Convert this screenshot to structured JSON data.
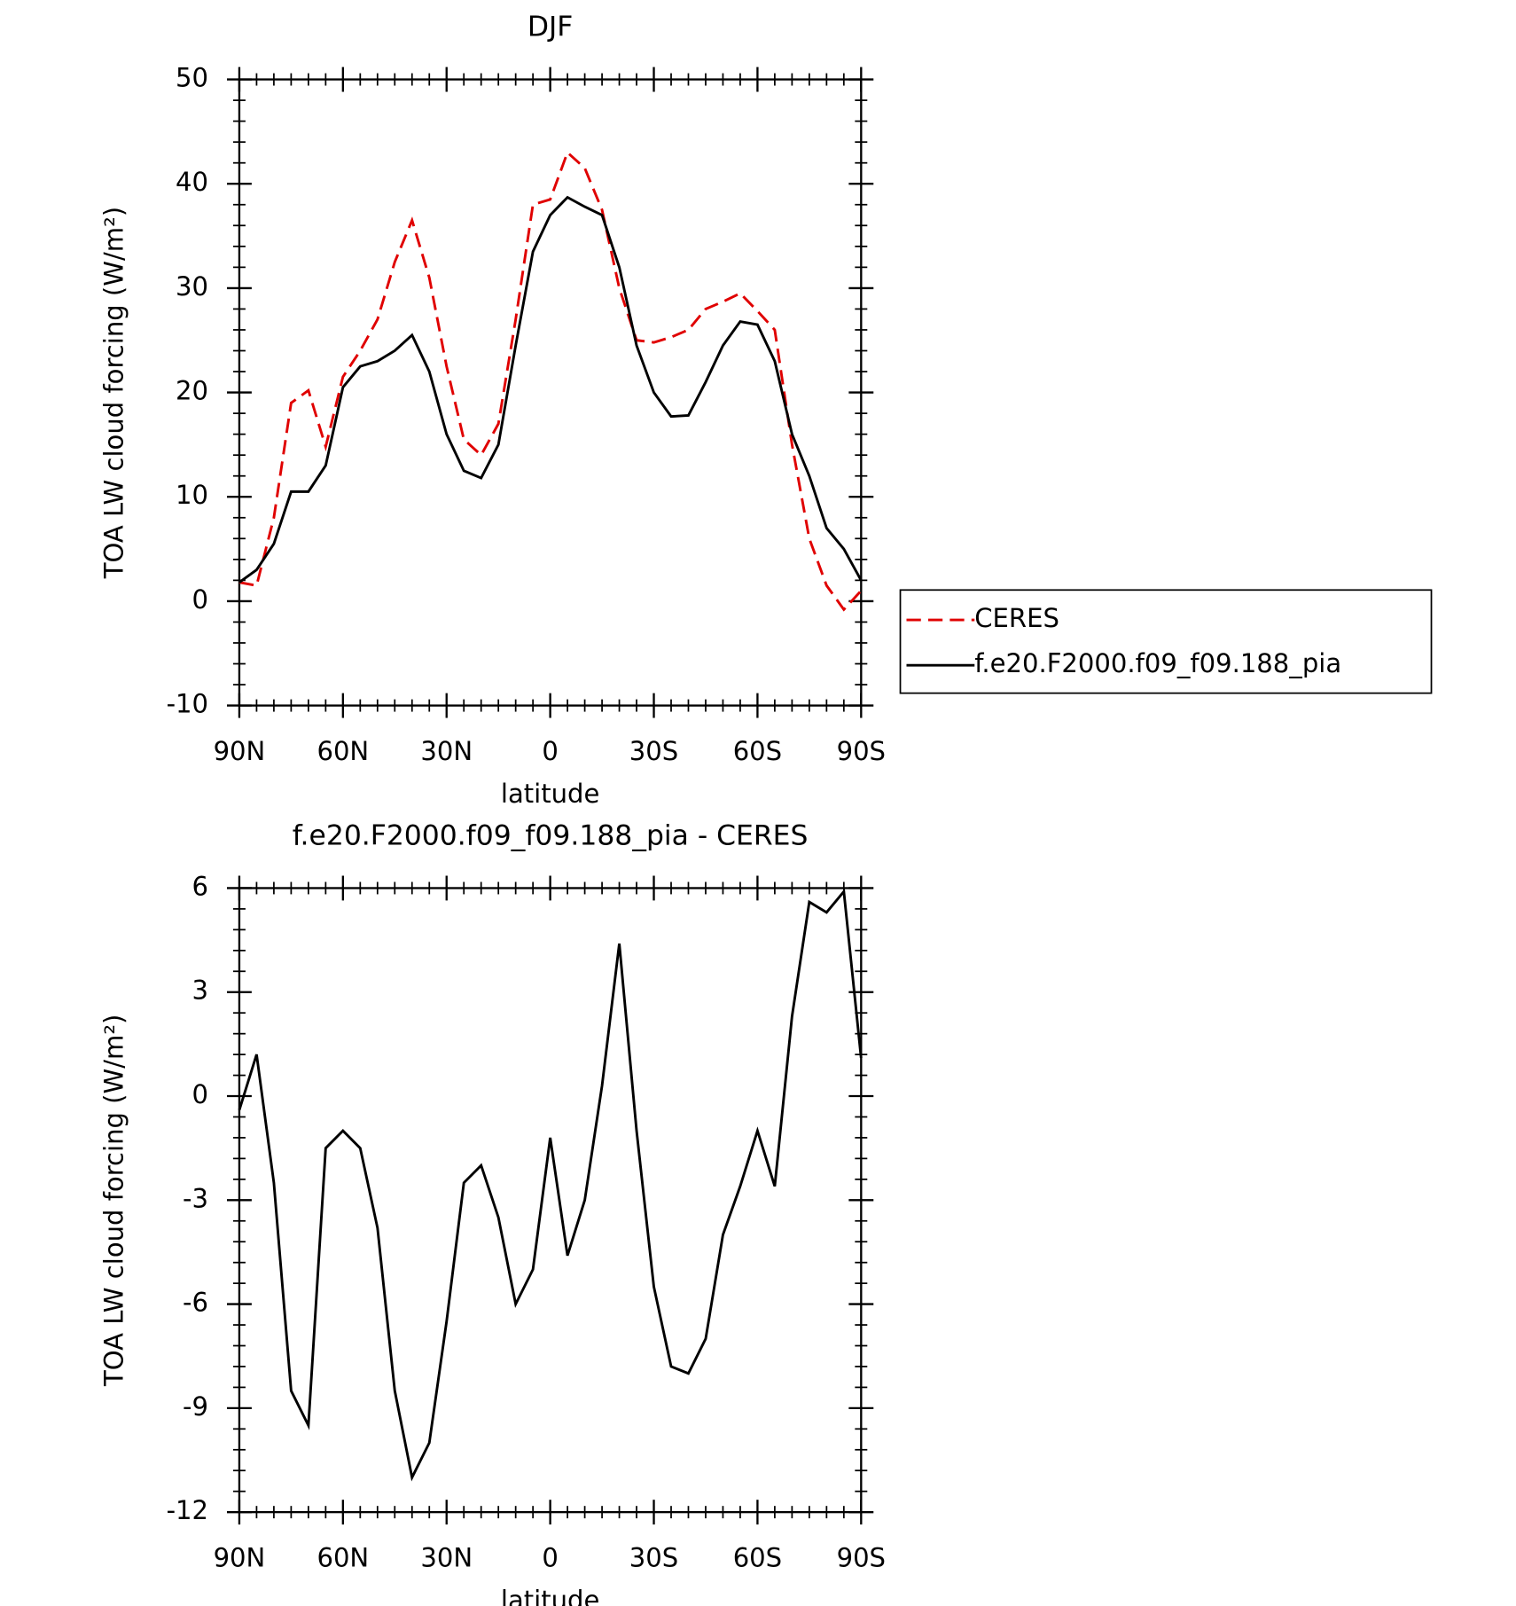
{
  "chart_data": [
    {
      "type": "line",
      "title": "DJF",
      "xlabel": "latitude",
      "ylabel": "TOA LW cloud forcing (W/m²)",
      "x": [
        90,
        85,
        80,
        75,
        70,
        65,
        60,
        55,
        50,
        45,
        40,
        35,
        30,
        25,
        20,
        15,
        10,
        5,
        0,
        -5,
        -10,
        -15,
        -20,
        -25,
        -30,
        -35,
        -40,
        -45,
        -50,
        -55,
        -60,
        -65,
        -70,
        -75,
        -80,
        -85,
        -90
      ],
      "series": [
        {
          "name": "CERES",
          "color": "#e00000",
          "style": "dashed",
          "values": [
            1.8,
            1.5,
            8,
            19,
            20.2,
            14.8,
            21.5,
            24,
            27,
            32.5,
            36.5,
            31,
            22.5,
            15.5,
            14,
            17,
            27,
            38,
            38.5,
            43,
            41.5,
            37.5,
            30,
            25,
            24.8,
            25.3,
            26,
            28,
            28.7,
            29.5,
            27.8,
            26,
            15,
            6,
            1.5,
            -0.8,
            1
          ]
        },
        {
          "name": "f.e20.F2000.f09_f09.188_pia",
          "color": "#000000",
          "style": "solid",
          "values": [
            1.8,
            3,
            5.5,
            10.5,
            10.5,
            13,
            20.5,
            22.5,
            23,
            24,
            25.5,
            22,
            16,
            12.5,
            11.8,
            15,
            24.5,
            33.5,
            37,
            38.7,
            37.8,
            37,
            32,
            24.5,
            20,
            17.7,
            17.8,
            21,
            24.5,
            26.8,
            26.5,
            23,
            16,
            12,
            7,
            5,
            2
          ]
        }
      ],
      "xlim": [
        90,
        -90
      ],
      "xticks": [
        {
          "value": 90,
          "label": "90N"
        },
        {
          "value": 60,
          "label": "60N"
        },
        {
          "value": 30,
          "label": "30N"
        },
        0,
        {
          "value": -30,
          "label": "30S"
        },
        {
          "value": -60,
          "label": "60S"
        },
        {
          "value": -90,
          "label": "90S"
        }
      ],
      "ylim": [
        -10,
        50
      ],
      "yticks": [
        -10,
        0,
        10,
        20,
        30,
        40,
        50
      ],
      "legend": "right"
    },
    {
      "type": "line",
      "title": "f.e20.F2000.f09_f09.188_pia - CERES",
      "xlabel": "latitude",
      "ylabel": "TOA LW cloud forcing (W/m²)",
      "x": [
        90,
        85,
        80,
        75,
        70,
        65,
        60,
        55,
        50,
        45,
        40,
        35,
        30,
        25,
        20,
        15,
        10,
        5,
        0,
        -5,
        -10,
        -15,
        -20,
        -25,
        -30,
        -35,
        -40,
        -45,
        -50,
        -55,
        -60,
        -65,
        -70,
        -75,
        -80,
        -85,
        -90
      ],
      "series": [
        {
          "color": "#000000",
          "style": "solid",
          "values": [
            -0.4,
            1.2,
            -2.5,
            -8.5,
            -9.5,
            -1.5,
            -1,
            -1.5,
            -3.8,
            -8.5,
            -11,
            -10,
            -6.5,
            -2.5,
            -2,
            -3.5,
            -6,
            -5,
            -1.2,
            -4.6,
            -3,
            0.3,
            4.4,
            -1,
            -5.5,
            -7.8,
            -8,
            -7,
            -4,
            -2.6,
            -1,
            -2.6,
            2.3,
            5.6,
            5.3,
            5.9,
            1.1
          ]
        }
      ],
      "xlim": [
        90,
        -90
      ],
      "xticks": [
        {
          "value": 90,
          "label": "90N"
        },
        {
          "value": 60,
          "label": "60N"
        },
        {
          "value": 30,
          "label": "30N"
        },
        0,
        {
          "value": -30,
          "label": "30S"
        },
        {
          "value": -60,
          "label": "60S"
        },
        {
          "value": -90,
          "label": "90S"
        }
      ],
      "ylim": [
        -12,
        6
      ],
      "yticks": [
        -12,
        -9,
        -6,
        -3,
        0,
        3,
        6
      ]
    }
  ]
}
